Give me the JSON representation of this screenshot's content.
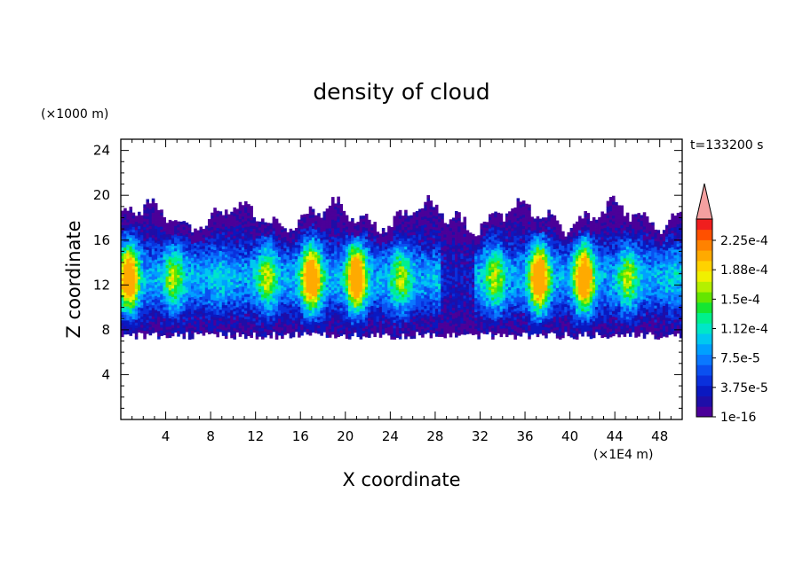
{
  "chart_data": {
    "type": "heatmap",
    "title": "density of cloud",
    "time_label": "t=133200 s",
    "xlabel": "X coordinate",
    "ylabel": "Z coordinate",
    "x_unit": "(×1E4 m)",
    "y_unit": "(×1000 m)",
    "xlim": [
      0,
      50
    ],
    "ylim": [
      0,
      25
    ],
    "x_ticks": [
      "4",
      "8",
      "12",
      "16",
      "20",
      "24",
      "28",
      "32",
      "36",
      "40",
      "44",
      "48"
    ],
    "x_tick_values": [
      4,
      8,
      12,
      16,
      20,
      24,
      28,
      32,
      36,
      40,
      44,
      48
    ],
    "y_ticks": [
      "4",
      "8",
      "12",
      "16",
      "20",
      "24"
    ],
    "y_tick_values": [
      4,
      8,
      12,
      16,
      20,
      24
    ],
    "colorbar": {
      "labels": [
        "2.25e-4",
        "1.88e-4",
        "1.5e-4",
        "1.12e-4",
        "7.5e-5",
        "3.75e-5",
        "1e-16"
      ],
      "colors": [
        "#4b0099",
        "#1e0ea8",
        "#0a18c0",
        "#0a30dc",
        "#0a50f0",
        "#0a78ff",
        "#00a0ff",
        "#00c8f0",
        "#00e6c8",
        "#00f08c",
        "#14e632",
        "#64e600",
        "#b4f000",
        "#f0f000",
        "#ffd200",
        "#ffaa00",
        "#ff8200",
        "#ff5000",
        "#f01e1e"
      ],
      "extend_color": "#f4a0a0"
    },
    "cloud_base_z": 7.5,
    "cloud_top_z_range": [
      17.5,
      19.5
    ],
    "max_density_band_z": [
      10,
      15
    ]
  }
}
